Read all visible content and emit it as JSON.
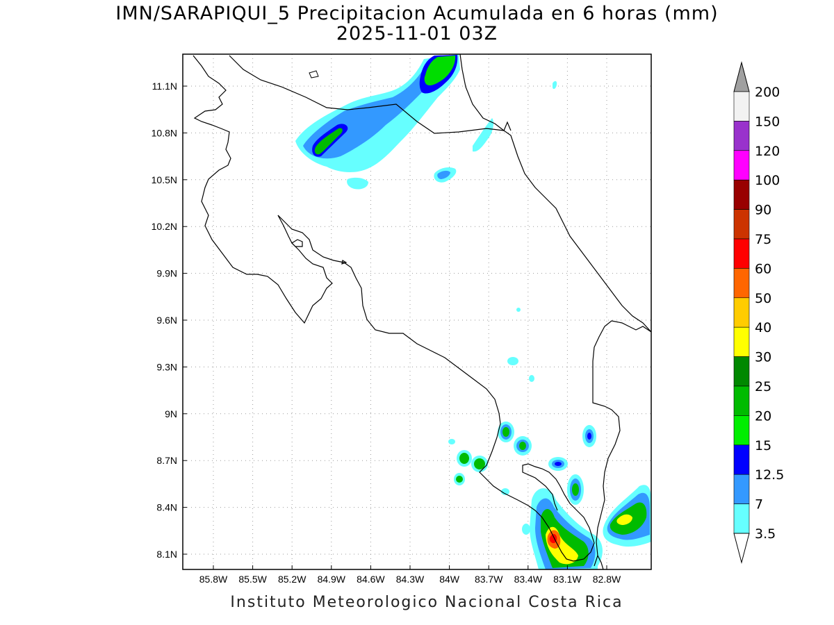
{
  "map": {
    "title_line1": "IMN/SARAPIQUI_5 Precipitacion Acumulada en 6 horas (mm)",
    "title_line2": "2025-11-01 03Z",
    "footer": "Instituto Meteorologico Nacional Costa Rica",
    "lat_ticks": [
      "11.1N",
      "10.8N",
      "10.5N",
      "10.2N",
      "9.9N",
      "9.6N",
      "9.3N",
      "9N",
      "8.7N",
      "8.4N",
      "8.1N"
    ],
    "lon_ticks": [
      "85.8W",
      "85.5W",
      "85.2W",
      "84.9W",
      "84.6W",
      "84.3W",
      "84W",
      "83.7W",
      "83.4W",
      "83.1W",
      "82.8W"
    ],
    "colorbar": {
      "labels": [
        "200",
        "150",
        "120",
        "100",
        "90",
        "75",
        "60",
        "50",
        "40",
        "30",
        "25",
        "20",
        "15",
        "12.5",
        "7",
        "3.5"
      ],
      "colors": [
        "#a0a0a0",
        "#f2f2f2",
        "#9932cc",
        "#ff00ff",
        "#990000",
        "#cc3300",
        "#ff0000",
        "#ff6600",
        "#ffcc00",
        "#ffff00",
        "#008800",
        "#00bb00",
        "#00ee00",
        "#0000ff",
        "#3399ff",
        "#66ffff",
        "#ffffff"
      ]
    }
  }
}
